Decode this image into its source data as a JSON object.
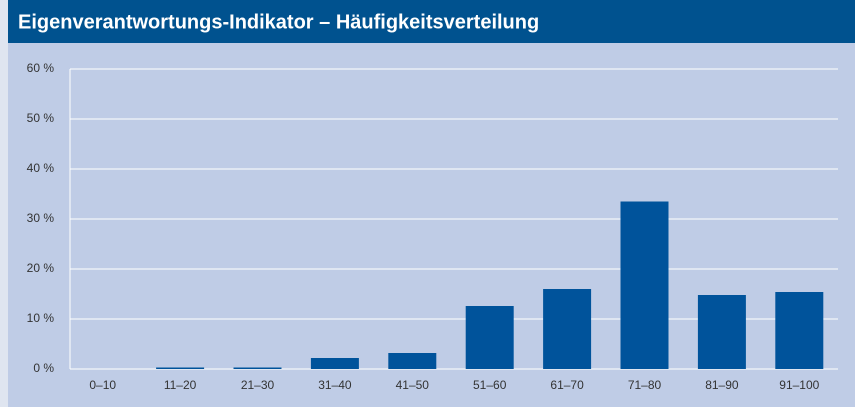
{
  "chart_data": {
    "type": "bar",
    "title": "Eigenverantwortungs-Indikator – Häufigkeitsverteilung",
    "categories": [
      "0–10",
      "11–20",
      "21–30",
      "31–40",
      "41–50",
      "51–60",
      "61–70",
      "71–80",
      "81–90",
      "91–100"
    ],
    "values": [
      0,
      0.3,
      0.3,
      2.2,
      3.2,
      12.6,
      16,
      33.5,
      14.8,
      15.4
    ],
    "color": "#00539b",
    "ylim": [
      0,
      60
    ],
    "yticks": [
      {
        "value": 0,
        "label": "0 %"
      },
      {
        "value": 10,
        "label": "10 %"
      },
      {
        "value": 20,
        "label": "20 %"
      },
      {
        "value": 30,
        "label": "30 %"
      },
      {
        "value": 40,
        "label": "40 %"
      },
      {
        "value": 50,
        "label": "50 %"
      },
      {
        "value": 60,
        "label": "60 %"
      }
    ],
    "grid": true
  }
}
